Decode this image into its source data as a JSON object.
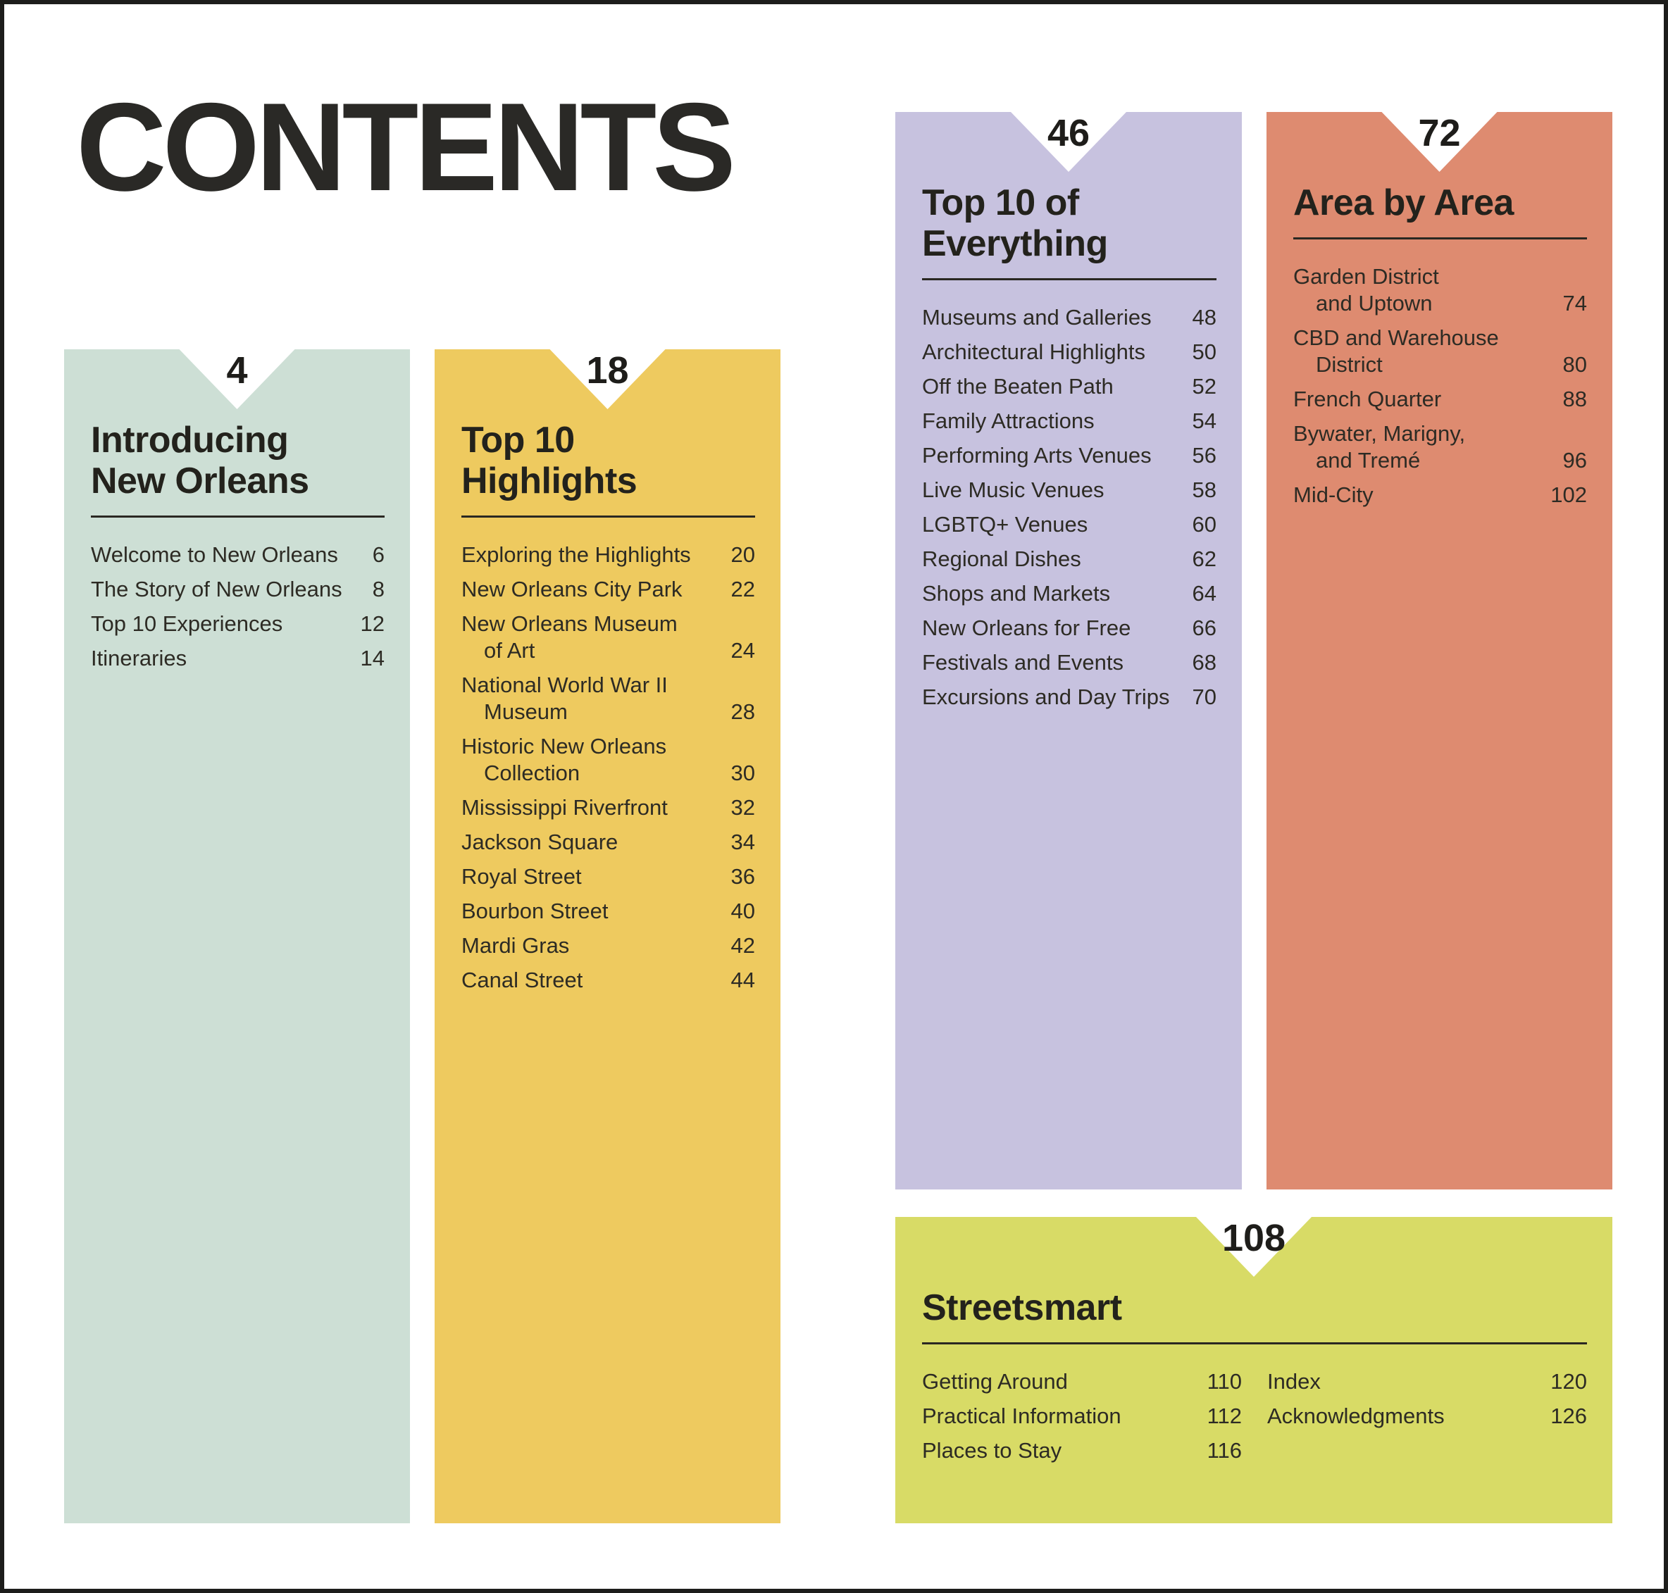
{
  "page": {
    "title": "CONTENTS",
    "border_color": "#1d1d1b",
    "background_color": "#ffffff",
    "text_color": "#2d2b24"
  },
  "sections": [
    {
      "id": "introducing-new-orleans",
      "page_number": "4",
      "color": "#cddfd5",
      "title_lines": [
        "Introducing",
        "New Orleans"
      ],
      "items": [
        {
          "l1": "Welcome to New Orleans",
          "page": "6"
        },
        {
          "l1": "The Story of New Orleans",
          "page": "8"
        },
        {
          "l1": "Top 10 Experiences",
          "page": "12"
        },
        {
          "l1": "Itineraries",
          "page": "14"
        }
      ]
    },
    {
      "id": "top-10-highlights",
      "page_number": "18",
      "color": "#eeca5f",
      "title_lines": [
        "Top 10 Highlights"
      ],
      "items": [
        {
          "l1": "Exploring the Highlights",
          "page": "20"
        },
        {
          "l1": "New Orleans City Park",
          "page": "22"
        },
        {
          "l1": "New Orleans Museum",
          "l2": "of Art",
          "page": "24"
        },
        {
          "l1": "National World War II",
          "l2": "Museum",
          "page": "28"
        },
        {
          "l1": "Historic New Orleans",
          "l2": "Collection",
          "page": "30"
        },
        {
          "l1": "Mississippi Riverfront",
          "page": "32"
        },
        {
          "l1": "Jackson Square",
          "page": "34"
        },
        {
          "l1": "Royal Street",
          "page": "36"
        },
        {
          "l1": "Bourbon Street",
          "page": "40"
        },
        {
          "l1": "Mardi Gras",
          "page": "42"
        },
        {
          "l1": "Canal Street",
          "page": "44"
        }
      ]
    },
    {
      "id": "top-10-of-everything",
      "page_number": "46",
      "color": "#c7c2df",
      "title_lines": [
        "Top 10 of",
        "Everything"
      ],
      "items": [
        {
          "l1": "Museums and Galleries",
          "page": "48"
        },
        {
          "l1": "Architectural Highlights",
          "page": "50"
        },
        {
          "l1": "Off the Beaten Path",
          "page": "52"
        },
        {
          "l1": "Family Attractions",
          "page": "54"
        },
        {
          "l1": "Performing Arts Venues",
          "page": "56"
        },
        {
          "l1": "Live Music Venues",
          "page": "58"
        },
        {
          "l1": "LGBTQ+ Venues",
          "page": "60"
        },
        {
          "l1": "Regional Dishes",
          "page": "62"
        },
        {
          "l1": "Shops and Markets",
          "page": "64"
        },
        {
          "l1": "New Orleans for Free",
          "page": "66"
        },
        {
          "l1": "Festivals and Events",
          "page": "68"
        },
        {
          "l1": "Excursions and Day Trips",
          "page": "70"
        }
      ]
    },
    {
      "id": "area-by-area",
      "page_number": "72",
      "color": "#de8b70",
      "title_lines": [
        "Area by Area"
      ],
      "items": [
        {
          "l1": "Garden District",
          "l2": "and Uptown",
          "page": "74"
        },
        {
          "l1": "CBD and Warehouse",
          "l2": "District",
          "page": "80"
        },
        {
          "l1": "French Quarter",
          "page": "88"
        },
        {
          "l1": "Bywater, Marigny,",
          "l2": "and Tremé",
          "page": "96"
        },
        {
          "l1": "Mid-City",
          "page": "102"
        }
      ]
    },
    {
      "id": "streetsmart",
      "page_number": "108",
      "color": "#d8db66",
      "title_lines": [
        "Streetsmart"
      ],
      "items_left": [
        {
          "l1": "Getting Around",
          "page": "110"
        },
        {
          "l1": "Practical Information",
          "page": "112"
        },
        {
          "l1": "Places to Stay",
          "page": "116"
        }
      ],
      "items_right": [
        {
          "l1": "Index",
          "page": "120"
        },
        {
          "l1": "Acknowledgments",
          "page": "126"
        }
      ]
    }
  ]
}
